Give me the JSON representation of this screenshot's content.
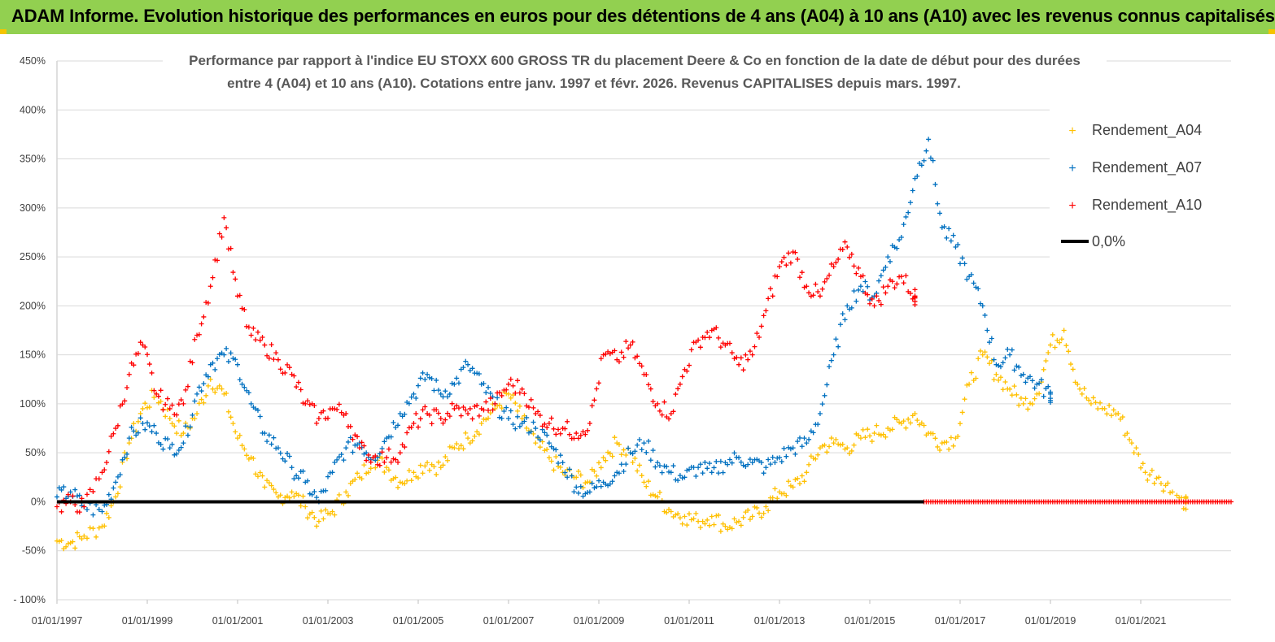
{
  "header": {
    "title": "ADAM Informe. Evolution historique des performances en euros pour des détentions de 4 ans (A04) à 10 ans (A10) avec les revenus connus capitalisés"
  },
  "colors": {
    "banner": "#92d050",
    "corner": "#f5c400",
    "A04": "#ffc000",
    "A07": "#0070c0",
    "A10": "#ff0000",
    "zero": "#000000",
    "grid": "#d9d9d9"
  },
  "chart_data": {
    "type": "scatter",
    "title_lines": [
      "Performance par rapport à l'indice EU STOXX 600 GROSS TR  du placement Deere & Co en fonction de la date de début pour des durées",
      "entre 4 (A04) et 10 ans (A10).  Cotations entre janv. 1997 et févr. 2026. Revenus CAPITALISES depuis mars. 1997."
    ],
    "xlabel": "",
    "ylabel": "",
    "xlim": [
      1997.0,
      2023.0
    ],
    "ylim": [
      -100,
      450
    ],
    "y_ticks": [
      -100,
      -50,
      0,
      50,
      100,
      150,
      200,
      250,
      300,
      350,
      400,
      450
    ],
    "y_tick_labels": [
      "- 100%",
      "-50%",
      "0%",
      "50%",
      "100%",
      "150%",
      "200%",
      "250%",
      "300%",
      "350%",
      "400%",
      "450%"
    ],
    "x_ticks": [
      1997,
      1999,
      2001,
      2003,
      2005,
      2007,
      2009,
      2011,
      2013,
      2015,
      2017,
      2019,
      2021
    ],
    "x_tick_labels": [
      "01/01/1997",
      "01/01/1999",
      "01/01/2001",
      "01/01/2003",
      "01/01/2005",
      "01/01/2007",
      "01/01/2009",
      "01/01/2011",
      "01/01/2013",
      "01/01/2015",
      "01/01/2017",
      "01/01/2019",
      "01/01/2021"
    ],
    "legend_position": "top-right",
    "grid": true,
    "series": [
      {
        "name": "Rendement_A04",
        "marker": "+",
        "x": [
          1997.0,
          1997.3,
          1997.6,
          1998.0,
          1998.3,
          1998.6,
          1998.9,
          1999.2,
          1999.5,
          1999.8,
          2000.1,
          2000.4,
          2000.7,
          2001.0,
          2001.3,
          2001.6,
          2001.9,
          2002.2,
          2002.5,
          2002.8,
          2003.1,
          2003.4,
          2003.7,
          2004.0,
          2004.3,
          2004.6,
          2004.9,
          2005.2,
          2005.5,
          2005.8,
          2006.1,
          2006.4,
          2006.7,
          2007.0,
          2007.3,
          2007.6,
          2007.9,
          2008.2,
          2008.5,
          2008.8,
          2009.1,
          2009.4,
          2009.7,
          2010.0,
          2010.3,
          2010.6,
          2010.9,
          2011.2,
          2011.5,
          2011.8,
          2012.1,
          2012.4,
          2012.7,
          2013.0,
          2013.3,
          2013.6,
          2013.9,
          2014.2,
          2014.5,
          2014.8,
          2015.1,
          2015.4,
          2015.7,
          2016.0,
          2016.3,
          2016.6,
          2016.9,
          2017.2,
          2017.5,
          2017.8,
          2018.1,
          2018.4,
          2018.7,
          2019.0,
          2019.3,
          2019.6,
          2019.9,
          2020.2,
          2020.5,
          2020.8,
          2021.1,
          2021.4,
          2021.7,
          2022.0
        ],
        "values": [
          -40,
          -42,
          -35,
          -25,
          5,
          60,
          95,
          110,
          85,
          70,
          90,
          125,
          110,
          65,
          45,
          15,
          5,
          10,
          -5,
          -20,
          -10,
          10,
          25,
          45,
          35,
          20,
          30,
          40,
          35,
          55,
          65,
          80,
          95,
          110,
          85,
          60,
          45,
          30,
          25,
          20,
          45,
          60,
          50,
          20,
          5,
          -10,
          -15,
          -20,
          -15,
          -25,
          -20,
          -15,
          -5,
          10,
          15,
          30,
          55,
          60,
          55,
          65,
          70,
          75,
          80,
          90,
          70,
          60,
          65,
          120,
          150,
          130,
          115,
          100,
          110,
          160,
          175,
          120,
          100,
          95,
          90,
          60,
          30,
          25,
          10,
          0
        ]
      },
      {
        "name": "Rendement_A07",
        "marker": "+",
        "x": [
          1997.0,
          1997.3,
          1997.6,
          1998.0,
          1998.3,
          1998.6,
          1998.9,
          1999.2,
          1999.5,
          1999.8,
          2000.1,
          2000.4,
          2000.7,
          2001.0,
          2001.3,
          2001.6,
          2001.9,
          2002.2,
          2002.5,
          2002.8,
          2003.1,
          2003.4,
          2003.7,
          2004.0,
          2004.3,
          2004.6,
          2004.9,
          2005.2,
          2005.5,
          2005.8,
          2006.1,
          2006.4,
          2006.7,
          2007.0,
          2007.3,
          2007.6,
          2007.9,
          2008.2,
          2008.5,
          2008.8,
          2009.1,
          2009.4,
          2009.7,
          2010.0,
          2010.3,
          2010.6,
          2010.9,
          2011.2,
          2011.5,
          2011.8,
          2012.1,
          2012.4,
          2012.7,
          2013.0,
          2013.3,
          2013.6,
          2013.9,
          2014.2,
          2014.5,
          2014.8,
          2015.1,
          2015.4,
          2015.7,
          2016.0,
          2016.3,
          2016.6,
          2016.9,
          2017.2,
          2017.5,
          2017.8,
          2018.1,
          2018.4,
          2018.7,
          2019.0
        ],
        "values": [
          5,
          10,
          -5,
          -10,
          20,
          65,
          80,
          70,
          55,
          60,
          110,
          140,
          150,
          140,
          100,
          70,
          55,
          35,
          20,
          0,
          30,
          55,
          60,
          45,
          65,
          90,
          110,
          130,
          110,
          120,
          140,
          120,
          100,
          85,
          80,
          75,
          60,
          40,
          15,
          10,
          20,
          30,
          50,
          60,
          40,
          30,
          25,
          35,
          30,
          40,
          45,
          40,
          35,
          45,
          55,
          60,
          90,
          150,
          200,
          220,
          210,
          250,
          270,
          330,
          370,
          280,
          260,
          230,
          200,
          140,
          150,
          130,
          120,
          110
        ]
      },
      {
        "name": "Rendement_A10",
        "marker": "+",
        "x": [
          1997.0,
          1997.3,
          1997.6,
          1998.0,
          1998.3,
          1998.6,
          1998.9,
          1999.2,
          1999.5,
          1999.8,
          2000.1,
          2000.4,
          2000.7,
          2001.0,
          2001.3,
          2001.6,
          2001.9,
          2002.2,
          2002.5,
          2002.8,
          2003.1,
          2003.4,
          2003.7,
          2004.0,
          2004.3,
          2004.6,
          2004.9,
          2005.2,
          2005.5,
          2005.8,
          2006.1,
          2006.4,
          2006.7,
          2007.0,
          2007.3,
          2007.6,
          2007.9,
          2008.2,
          2008.5,
          2008.8,
          2009.1,
          2009.4,
          2009.7,
          2010.0,
          2010.3,
          2010.6,
          2010.9,
          2011.2,
          2011.5,
          2011.8,
          2012.1,
          2012.4,
          2012.7,
          2013.0,
          2013.3,
          2013.6,
          2013.9,
          2014.2,
          2014.5,
          2014.8,
          2015.1,
          2015.4,
          2015.7,
          2016.0
        ],
        "values": [
          -5,
          0,
          -5,
          30,
          75,
          130,
          160,
          110,
          95,
          100,
          170,
          220,
          290,
          210,
          170,
          160,
          145,
          130,
          100,
          85,
          95,
          90,
          55,
          45,
          45,
          50,
          80,
          90,
          85,
          95,
          90,
          95,
          100,
          120,
          115,
          90,
          80,
          75,
          70,
          80,
          150,
          145,
          160,
          130,
          100,
          90,
          135,
          165,
          175,
          160,
          140,
          150,
          195,
          240,
          255,
          220,
          210,
          240,
          260,
          230,
          200,
          220,
          230,
          210
        ]
      }
    ],
    "flat_segments": [
      {
        "series": "Rendement_A10",
        "x_from": 2016.2,
        "x_to": 2023.0,
        "value": 0
      }
    ],
    "reference_line": {
      "name": "0,0%",
      "value": 0
    }
  }
}
